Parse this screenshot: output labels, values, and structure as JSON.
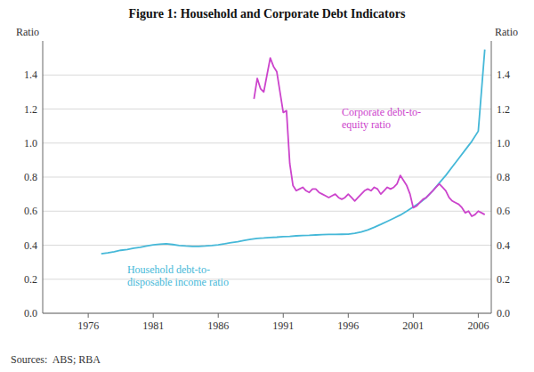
{
  "chart_data": {
    "type": "line",
    "title": "Figure 1: Household and Corporate Debt Indicators",
    "ylabel": "Ratio",
    "y2label": "Ratio",
    "source": "Sources:  ABS; RBA",
    "xlim": [
      1972.5,
      2007.0
    ],
    "xticks": [
      1976,
      1981,
      1986,
      1991,
      1996,
      2001,
      2006
    ],
    "ylim": [
      0.0,
      1.6
    ],
    "yticks": [
      {
        "value": 0.0,
        "label": "0.0"
      },
      0.2,
      0.4,
      0.6,
      0.8,
      {
        "value": 1.0,
        "label": "1.0"
      },
      1.2,
      1.4
    ],
    "y2lim": [
      0.0,
      1.6
    ],
    "y2ticks": [
      {
        "value": 0.0,
        "label": "0.0"
      },
      0.2,
      0.4,
      0.6,
      0.8,
      {
        "value": 1.0,
        "label": "1.0"
      },
      1.2,
      1.4
    ],
    "grid": true,
    "series": [
      {
        "color": "#45B8D8",
        "x": [
          1977.0,
          1977.5,
          1978.0,
          1978.5,
          1979.0,
          1979.5,
          1980.0,
          1980.5,
          1981.0,
          1981.5,
          1982.0,
          1982.5,
          1983.0,
          1983.5,
          1984.0,
          1984.5,
          1985.0,
          1985.5,
          1986.0,
          1986.5,
          1987.0,
          1987.5,
          1988.0,
          1988.5,
          1989.0,
          1989.5,
          1990.0,
          1990.5,
          1991.0,
          1991.5,
          1992.0,
          1992.5,
          1993.0,
          1993.5,
          1994.0,
          1994.5,
          1995.0,
          1995.5,
          1996.0,
          1996.5,
          1997.0,
          1997.5,
          1998.0,
          1998.5,
          1999.0,
          1999.5,
          2000.0,
          2000.5,
          2001.0,
          2001.5,
          2002.0,
          2002.5,
          2003.0,
          2003.5,
          2004.0,
          2004.5,
          2005.0,
          2005.5,
          2006.0,
          2006.5
        ],
        "values": [
          0.35,
          0.355,
          0.362,
          0.37,
          0.375,
          0.382,
          0.388,
          0.395,
          0.402,
          0.406,
          0.408,
          0.404,
          0.398,
          0.395,
          0.393,
          0.393,
          0.395,
          0.398,
          0.402,
          0.408,
          0.415,
          0.42,
          0.428,
          0.435,
          0.44,
          0.442,
          0.445,
          0.447,
          0.45,
          0.452,
          0.455,
          0.457,
          0.458,
          0.46,
          0.462,
          0.463,
          0.463,
          0.464,
          0.465,
          0.47,
          0.478,
          0.49,
          0.505,
          0.522,
          0.54,
          0.558,
          0.577,
          0.6,
          0.625,
          0.65,
          0.68,
          0.72,
          0.765,
          0.81,
          0.86,
          0.91,
          0.96,
          1.01,
          1.07,
          1.55
        ]
      },
      {
        "color": "#CC44CC",
        "x": [
          1988.75,
          1989.0,
          1989.25,
          1989.5,
          1989.75,
          1990.0,
          1990.25,
          1990.5,
          1990.75,
          1991.0,
          1991.25,
          1991.5,
          1991.75,
          1992.0,
          1992.25,
          1992.5,
          1992.75,
          1993.0,
          1993.25,
          1993.5,
          1993.75,
          1994.0,
          1994.25,
          1994.5,
          1994.75,
          1995.0,
          1995.25,
          1995.5,
          1995.75,
          1996.0,
          1996.25,
          1996.5,
          1996.75,
          1997.0,
          1997.25,
          1997.5,
          1997.75,
          1998.0,
          1998.25,
          1998.5,
          1998.75,
          1999.0,
          1999.25,
          1999.5,
          1999.75,
          2000.0,
          2000.25,
          2000.5,
          2000.75,
          2001.0,
          2001.25,
          2001.5,
          2001.75,
          2002.0,
          2002.25,
          2002.5,
          2002.75,
          2003.0,
          2003.25,
          2003.5,
          2003.75,
          2004.0,
          2004.25,
          2004.5,
          2004.75,
          2005.0,
          2005.25,
          2005.5,
          2005.75,
          2006.0,
          2006.25,
          2006.5
        ],
        "values": [
          1.26,
          1.38,
          1.32,
          1.3,
          1.4,
          1.5,
          1.45,
          1.42,
          1.3,
          1.18,
          1.19,
          0.88,
          0.75,
          0.72,
          0.73,
          0.74,
          0.72,
          0.71,
          0.73,
          0.73,
          0.71,
          0.7,
          0.69,
          0.68,
          0.69,
          0.7,
          0.68,
          0.67,
          0.68,
          0.7,
          0.68,
          0.66,
          0.68,
          0.7,
          0.72,
          0.73,
          0.72,
          0.74,
          0.73,
          0.7,
          0.72,
          0.74,
          0.73,
          0.74,
          0.76,
          0.81,
          0.78,
          0.75,
          0.7,
          0.62,
          0.63,
          0.65,
          0.67,
          0.68,
          0.7,
          0.72,
          0.74,
          0.76,
          0.74,
          0.72,
          0.68,
          0.66,
          0.65,
          0.64,
          0.62,
          0.59,
          0.6,
          0.57,
          0.58,
          0.6,
          0.59,
          0.58
        ]
      }
    ],
    "annotations": [
      {
        "text": "Corporate debt-to-\nequity ratio",
        "x": 1995.5,
        "y": 1.22,
        "color": "#CC44CC"
      },
      {
        "text": "Household debt-to-\ndisposable income ratio",
        "x": 1979.0,
        "y": 0.295,
        "color": "#45B8D8"
      }
    ]
  }
}
